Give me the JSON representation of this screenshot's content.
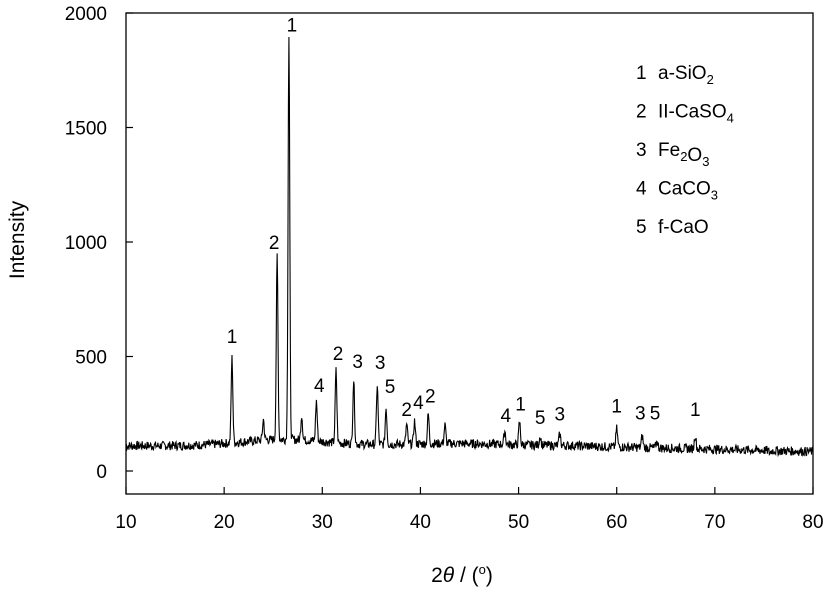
{
  "chart_data": {
    "type": "line",
    "xlabel_parts": {
      "pre": "2",
      "theta": "θ",
      "post": " / (",
      "deg": "o",
      "close": ")"
    },
    "ylabel": "Intensity",
    "xlim": [
      10,
      80
    ],
    "ylim": [
      0,
      2000
    ],
    "x_ticks": [
      10,
      20,
      30,
      40,
      50,
      60,
      70,
      80
    ],
    "y_ticks": [
      0,
      500,
      1000,
      1500,
      2000
    ],
    "grid": false,
    "legend_position": "top-right",
    "baseline_intensity": 110,
    "series": [
      {
        "peaks": [
          {
            "x": 20.8,
            "y": 480
          },
          {
            "x": 24.0,
            "y": 200
          },
          {
            "x": 25.4,
            "y": 910
          },
          {
            "x": 26.6,
            "y": 1870
          },
          {
            "x": 27.9,
            "y": 220
          },
          {
            "x": 29.4,
            "y": 285
          },
          {
            "x": 31.4,
            "y": 425
          },
          {
            "x": 33.2,
            "y": 390
          },
          {
            "x": 35.6,
            "y": 370
          },
          {
            "x": 36.5,
            "y": 270
          },
          {
            "x": 38.6,
            "y": 195
          },
          {
            "x": 39.4,
            "y": 210
          },
          {
            "x": 40.8,
            "y": 240
          },
          {
            "x": 42.5,
            "y": 190
          },
          {
            "x": 48.6,
            "y": 170
          },
          {
            "x": 50.1,
            "y": 210
          },
          {
            "x": 52.2,
            "y": 150
          },
          {
            "x": 54.2,
            "y": 160
          },
          {
            "x": 60.0,
            "y": 190
          },
          {
            "x": 62.6,
            "y": 160
          },
          {
            "x": 64.1,
            "y": 140
          },
          {
            "x": 68.0,
            "y": 170
          },
          {
            "x": 75.6,
            "y": 100
          }
        ]
      }
    ],
    "peak_labels": [
      {
        "text": "1",
        "x": 20.8,
        "y": 560
      },
      {
        "text": "2",
        "x": 25.1,
        "y": 970
      },
      {
        "text": "1",
        "x": 26.9,
        "y": 1920
      },
      {
        "text": "4",
        "x": 29.7,
        "y": 345
      },
      {
        "text": "2",
        "x": 31.6,
        "y": 485
      },
      {
        "text": "3",
        "x": 33.6,
        "y": 450
      },
      {
        "text": "3",
        "x": 35.9,
        "y": 445
      },
      {
        "text": "5",
        "x": 36.9,
        "y": 340
      },
      {
        "text": "2",
        "x": 38.6,
        "y": 240
      },
      {
        "text": "4",
        "x": 39.8,
        "y": 270
      },
      {
        "text": "2",
        "x": 41.0,
        "y": 300
      },
      {
        "text": "4",
        "x": 48.7,
        "y": 215
      },
      {
        "text": "1",
        "x": 50.2,
        "y": 265
      },
      {
        "text": "5",
        "x": 52.2,
        "y": 205
      },
      {
        "text": "3",
        "x": 54.2,
        "y": 220
      },
      {
        "text": "1",
        "x": 60.0,
        "y": 255
      },
      {
        "text": "3",
        "x": 62.4,
        "y": 225
      },
      {
        "text": "5",
        "x": 63.9,
        "y": 225
      },
      {
        "text": "1",
        "x": 68.0,
        "y": 240
      }
    ],
    "legend": [
      {
        "num": "1",
        "parts": [
          {
            "t": "a-SiO"
          },
          {
            "t": "2",
            "sub": true
          }
        ]
      },
      {
        "num": "2",
        "parts": [
          {
            "t": "II-CaSO"
          },
          {
            "t": "4",
            "sub": true
          }
        ]
      },
      {
        "num": "3",
        "parts": [
          {
            "t": "Fe"
          },
          {
            "t": "2",
            "sub": true
          },
          {
            "t": "O"
          },
          {
            "t": "3",
            "sub": true
          }
        ]
      },
      {
        "num": "4",
        "parts": [
          {
            "t": "CaCO"
          },
          {
            "t": "3",
            "sub": true
          }
        ]
      },
      {
        "num": "5",
        "parts": [
          {
            "t": "f-CaO"
          }
        ]
      }
    ]
  }
}
